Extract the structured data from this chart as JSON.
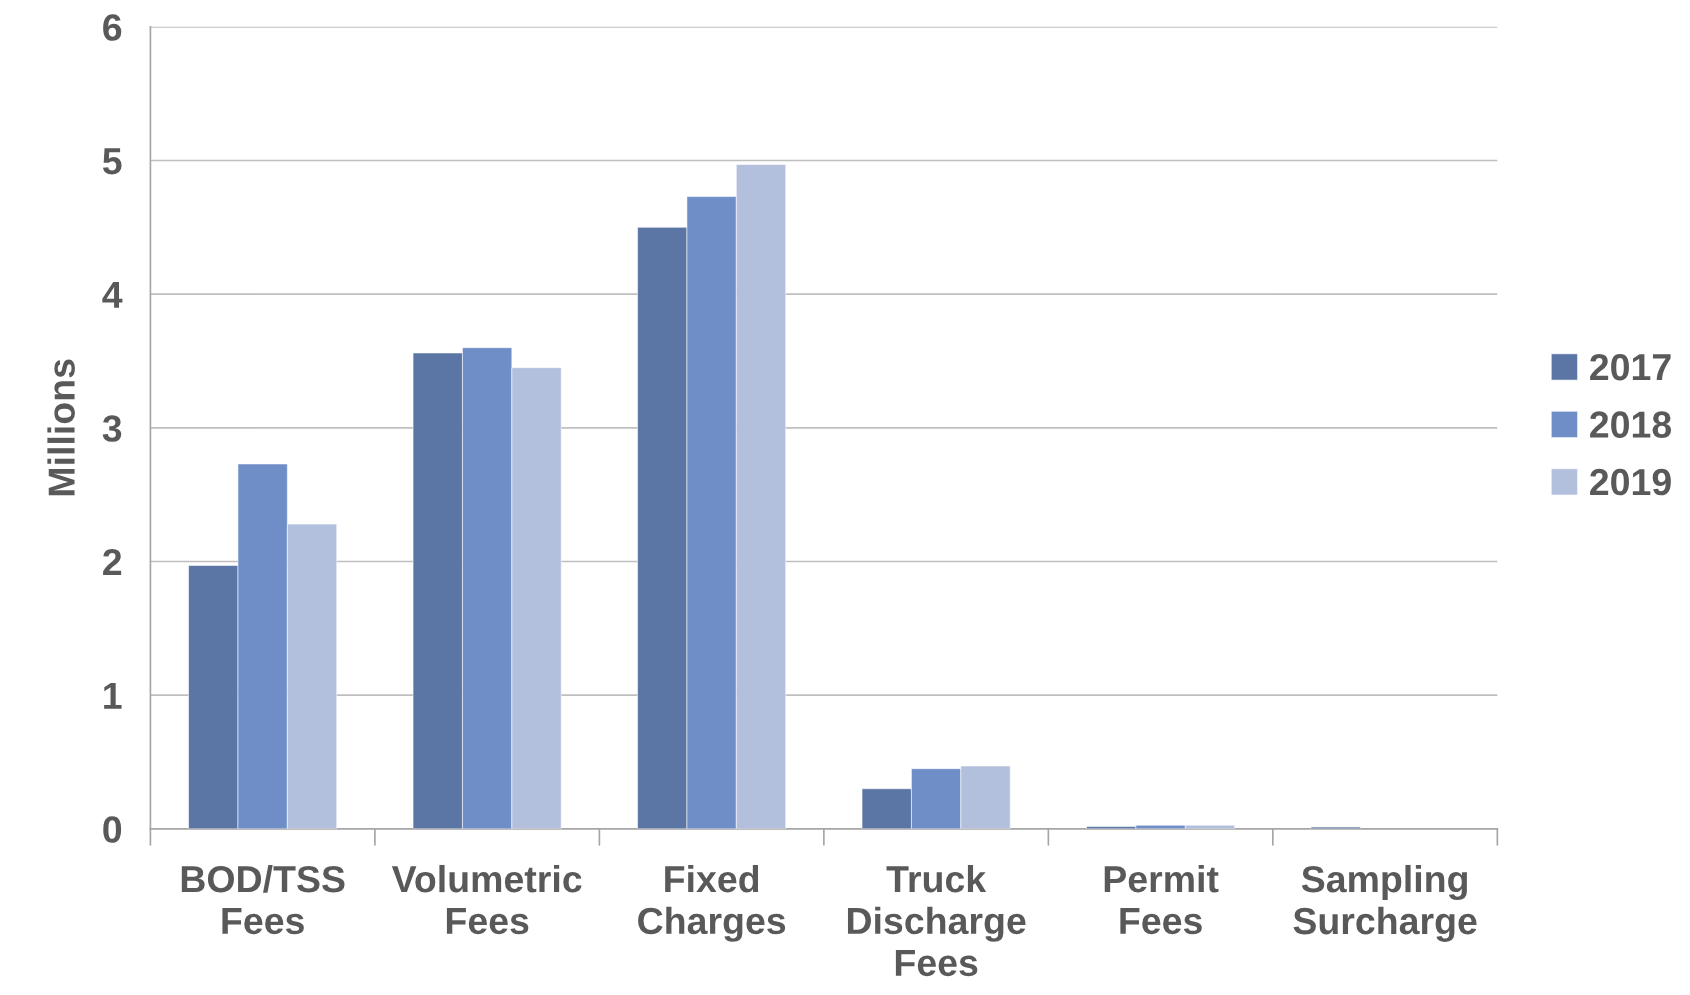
{
  "chart_data": {
    "type": "bar",
    "ylabel": "Millions",
    "categories": [
      "BOD/TSS Fees",
      "Volumetric Fees",
      "Fixed Charges",
      "Truck Discharge Fees",
      "Permit Fees",
      "Sampling Surcharge"
    ],
    "series": [
      {
        "name": "2017",
        "color": "#5b75a5",
        "values": [
          1.97,
          3.56,
          4.5,
          0.3,
          0.017,
          0.013
        ]
      },
      {
        "name": "2018",
        "color": "#6f8ec7",
        "values": [
          2.73,
          3.6,
          4.73,
          0.45,
          0.027,
          0
        ]
      },
      {
        "name": "2019",
        "color": "#b2c0de",
        "values": [
          2.28,
          3.45,
          4.97,
          0.47,
          0.027,
          0
        ]
      }
    ],
    "ylim": [
      0,
      6
    ],
    "yticks": [
      0,
      1,
      2,
      3,
      4,
      5,
      6
    ],
    "grid": "y",
    "legend": "right"
  }
}
